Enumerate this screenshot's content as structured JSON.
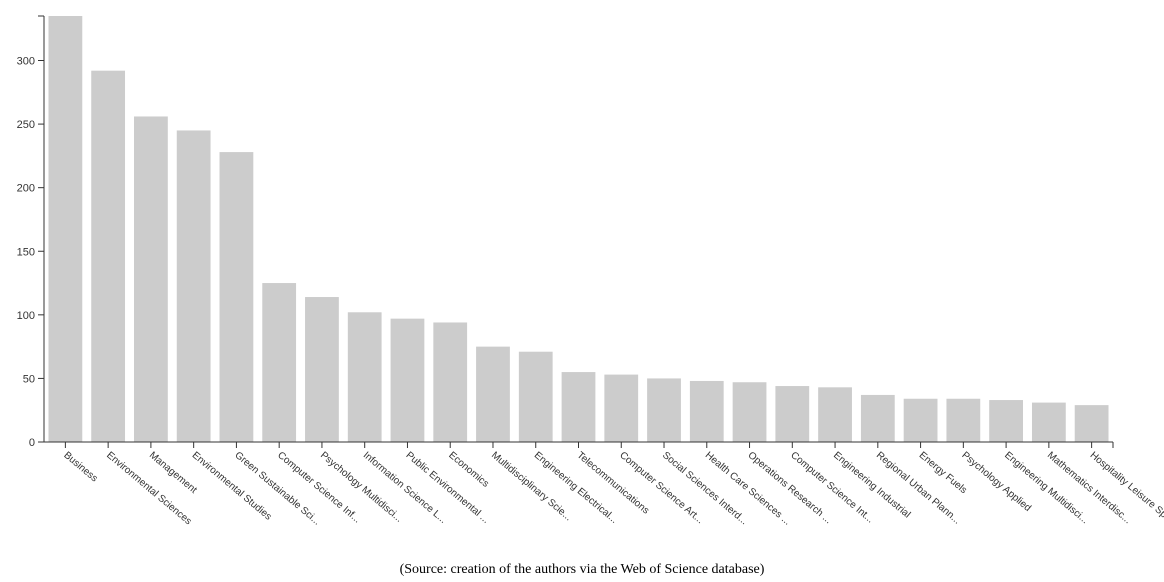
{
  "caption": "(Source: creation of the authors via the Web of Science database)",
  "colors": {
    "bar": "#cccccc",
    "axis": "#333333"
  },
  "chart_data": {
    "type": "bar",
    "title": "",
    "xlabel": "",
    "ylabel": "",
    "ylim": [
      0,
      335
    ],
    "yticks": [
      0,
      50,
      100,
      150,
      200,
      250,
      300
    ],
    "grid": false,
    "categories": [
      "Business",
      "Environmental Sciences",
      "Management",
      "Environmental Studies",
      "Green Sustainable Sci...",
      "Computer Science Inf...",
      "Psychology Multidisci...",
      "Information Science L...",
      "Public Environmental ...",
      "Economics",
      "Multidisciplinary Scie...",
      "Engineering Electrical...",
      "Telecommunications",
      "Computer Science Art...",
      "Social Sciences Interd...",
      "Health Care Sciences ...",
      "Operations Research ...",
      "Computer Science Int...",
      "Engineering Industrial",
      "Regional Urban Plann...",
      "Energy Fuels",
      "Psychology Applied",
      "Engineering Multidisci...",
      "Mathematics Interdisc...",
      "Hospitality Leisure Sp..."
    ],
    "values": [
      335,
      292,
      256,
      245,
      228,
      125,
      114,
      102,
      97,
      94,
      75,
      71,
      55,
      53,
      50,
      48,
      47,
      44,
      43,
      37,
      34,
      34,
      33,
      31,
      29
    ]
  }
}
